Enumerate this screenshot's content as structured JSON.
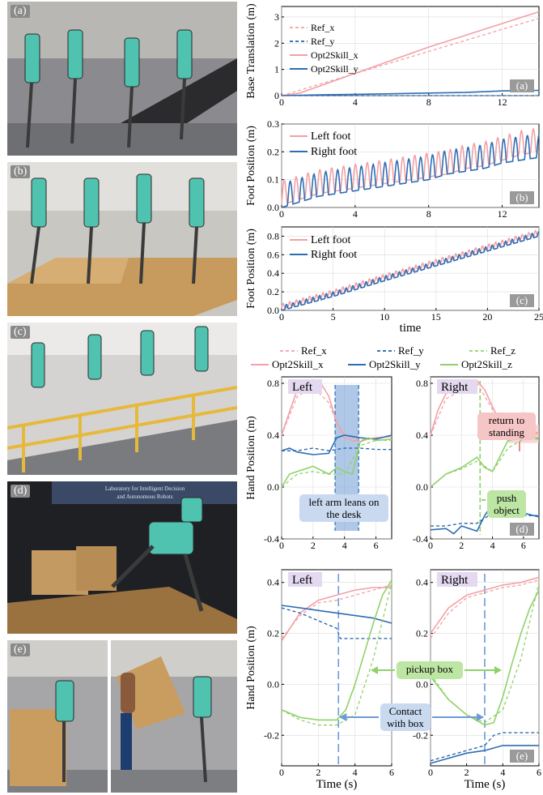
{
  "photos": [
    {
      "tag": "(a)"
    },
    {
      "tag": "(b)"
    },
    {
      "tag": "(c)"
    },
    {
      "tag": "(d)",
      "banner_line1": "Laboratory for Intelligent Decision",
      "banner_line2": "and Autonomous Robots"
    },
    {
      "tag": "(e)"
    }
  ],
  "colors": {
    "pink": "#f2a1a5",
    "blue": "#2e6db4",
    "green": "#8fd26a",
    "ref_blue": "#1f5fa8",
    "blue_box": "#6e9ad6",
    "purple_label": "#e4d9f1",
    "green_box": "#bde6a5",
    "pink_box": "#f6c5c5",
    "blue_note": "#c9d9f0"
  },
  "chart_data": [
    {
      "id": "a",
      "type": "line",
      "ylabel": "Base Translation (m)",
      "xlim": [
        0,
        14
      ],
      "ylim": [
        0,
        3.4
      ],
      "xticks": [
        0,
        4,
        8,
        12
      ],
      "yticks": [
        0,
        1,
        2,
        3
      ],
      "panel_label": "(a)",
      "legend": [
        "Ref_x",
        "Ref_y",
        "Opt2Skill_x",
        "Opt2Skill_y"
      ],
      "series": [
        {
          "name": "Ref_x",
          "x": [
            0,
            14
          ],
          "y": [
            0,
            2.95
          ]
        },
        {
          "name": "Ref_y",
          "x": [
            0,
            14
          ],
          "y": [
            0,
            0
          ]
        },
        {
          "name": "Opt2Skill_x",
          "x": [
            0,
            1,
            2,
            4,
            6,
            8,
            10,
            12,
            14
          ],
          "y": [
            0,
            0.1,
            0.35,
            0.85,
            1.35,
            1.85,
            2.3,
            2.75,
            3.2
          ]
        },
        {
          "name": "Opt2Skill_y",
          "x": [
            0,
            2,
            4,
            6,
            8,
            10,
            12,
            14
          ],
          "y": [
            0,
            0.03,
            0.05,
            0.07,
            0.1,
            0.12,
            0.18,
            0.2
          ]
        }
      ]
    },
    {
      "id": "b",
      "type": "line",
      "ylabel": "Foot Position (m)",
      "xlim": [
        0,
        14
      ],
      "ylim": [
        0,
        0.3
      ],
      "xticks": [
        0,
        4,
        8,
        12
      ],
      "yticks": [
        0.0,
        0.1,
        0.2,
        0.3
      ],
      "panel_label": "(b)",
      "legend": [
        "Left foot",
        "Right foot"
      ],
      "series": [
        {
          "name": "Left foot",
          "x": [
            0,
            1,
            2,
            3,
            4,
            5,
            6,
            7,
            8,
            9,
            10,
            11,
            12,
            13,
            14
          ],
          "y": [
            0.01,
            0.03,
            0.05,
            0.06,
            0.07,
            0.08,
            0.09,
            0.1,
            0.11,
            0.12,
            0.14,
            0.15,
            0.17,
            0.19,
            0.2
          ]
        },
        {
          "name": "Right foot",
          "x": [
            0,
            1,
            2,
            3,
            4,
            5,
            6,
            7,
            8,
            9,
            10,
            11,
            12,
            13,
            14
          ],
          "y": [
            0,
            0.02,
            0.04,
            0.05,
            0.06,
            0.07,
            0.08,
            0.09,
            0.1,
            0.12,
            0.13,
            0.14,
            0.16,
            0.17,
            0.18
          ]
        }
      ]
    },
    {
      "id": "c",
      "type": "line",
      "ylabel": "Foot Position (m)",
      "xlabel": "time",
      "xlim": [
        0,
        25
      ],
      "ylim": [
        0,
        0.9
      ],
      "xticks": [
        0,
        5,
        10,
        15,
        20,
        25
      ],
      "yticks": [
        0.0,
        0.2,
        0.4,
        0.6,
        0.8
      ],
      "panel_label": "(c)",
      "legend": [
        "Left foot",
        "Right foot"
      ],
      "series": [
        {
          "name": "Left foot",
          "x": [
            0,
            5,
            10,
            15,
            20,
            25
          ],
          "y": [
            0.02,
            0.17,
            0.34,
            0.5,
            0.66,
            0.82
          ]
        },
        {
          "name": "Right foot",
          "x": [
            0,
            5,
            10,
            15,
            20,
            25
          ],
          "y": [
            0.0,
            0.15,
            0.32,
            0.48,
            0.64,
            0.8
          ]
        }
      ]
    },
    {
      "id": "d",
      "type": "line",
      "ylabel": "Hand Position (m)",
      "legend": [
        "Ref_x",
        "Ref_y",
        "Ref_z",
        "Opt2Skill_x",
        "Opt2Skill_y",
        "Opt2Skill_z"
      ],
      "panel_label": "(d)",
      "subplots": [
        {
          "title": "Left",
          "xlim": [
            0,
            7
          ],
          "ylim": [
            -0.4,
            0.85
          ],
          "xticks": [
            0,
            2,
            4,
            6
          ],
          "yticks": [
            -0.4,
            0.0,
            0.4,
            0.8
          ],
          "annotation": [
            "left arm leans on",
            "the desk"
          ],
          "series": [
            {
              "name": "Opt2Skill_x",
              "x": [
                0,
                0.5,
                1,
                1.5,
                2,
                2.5,
                3,
                3.5,
                4,
                4.5,
                5,
                5.5,
                6,
                7
              ],
              "y": [
                0.4,
                0.58,
                0.75,
                0.8,
                0.82,
                0.8,
                0.7,
                0.5,
                0.38,
                0.36,
                0.35,
                0.37,
                0.38,
                0.39
              ]
            },
            {
              "name": "Ref_x",
              "x": [
                0,
                1,
                2,
                3,
                3.5,
                4,
                5,
                6,
                7
              ],
              "y": [
                0.4,
                0.7,
                0.77,
                0.65,
                0.5,
                0.4,
                0.36,
                0.38,
                0.39
              ]
            },
            {
              "name": "Opt2Skill_y",
              "x": [
                0,
                0.5,
                1,
                2,
                3,
                3.5,
                4,
                5,
                6,
                7
              ],
              "y": [
                0.28,
                0.3,
                0.27,
                0.25,
                0.26,
                0.38,
                0.4,
                0.38,
                0.37,
                0.4
              ]
            },
            {
              "name": "Ref_y",
              "x": [
                0,
                1,
                2,
                3,
                4,
                5,
                6,
                7
              ],
              "y": [
                0.28,
                0.28,
                0.3,
                0.28,
                0.3,
                0.3,
                0.29,
                0.29
              ]
            },
            {
              "name": "Opt2Skill_z",
              "x": [
                0,
                0.5,
                1,
                2,
                3,
                3.5,
                4,
                4.5,
                5,
                5.5,
                6,
                7
              ],
              "y": [
                0.0,
                0.1,
                0.12,
                0.16,
                0.1,
                0.15,
                0.12,
                0.1,
                0.35,
                0.38,
                0.36,
                0.37
              ]
            },
            {
              "name": "Ref_z",
              "x": [
                0,
                1,
                2,
                3,
                4,
                5,
                6,
                7
              ],
              "y": [
                0.0,
                0.1,
                0.12,
                0.1,
                0.1,
                0.32,
                0.36,
                0.36
              ]
            }
          ]
        },
        {
          "title": "Right",
          "xlim": [
            0,
            7
          ],
          "ylim": [
            -0.4,
            0.85
          ],
          "xticks": [
            0,
            2,
            4,
            6
          ],
          "yticks": [
            -0.4,
            0.0,
            0.4,
            0.8
          ],
          "annotations": [
            [
              "return to",
              "standing"
            ],
            [
              "push",
              "object"
            ]
          ],
          "series": [
            {
              "name": "Opt2Skill_x",
              "x": [
                0,
                0.5,
                1,
                2,
                3,
                3.5,
                4,
                4.5,
                5,
                5.5,
                6,
                7
              ],
              "y": [
                0.4,
                0.6,
                0.72,
                0.76,
                0.82,
                0.75,
                0.62,
                0.5,
                0.42,
                0.4,
                0.42,
                0.42
              ]
            },
            {
              "name": "Ref_x",
              "x": [
                0,
                1,
                2,
                3,
                4,
                5,
                6,
                7
              ],
              "y": [
                0.4,
                0.68,
                0.75,
                0.8,
                0.6,
                0.42,
                0.4,
                0.41
              ]
            },
            {
              "name": "Opt2Skill_z",
              "x": [
                0,
                0.5,
                1,
                2,
                3,
                3.5,
                4,
                5,
                6,
                7
              ],
              "y": [
                0.0,
                0.05,
                0.1,
                0.15,
                0.23,
                0.15,
                0.12,
                0.36,
                0.38,
                0.38
              ]
            },
            {
              "name": "Ref_z",
              "x": [
                0,
                1,
                2,
                3,
                4,
                5,
                6,
                7
              ],
              "y": [
                0.0,
                0.1,
                0.14,
                0.2,
                0.12,
                0.3,
                0.37,
                0.37
              ]
            },
            {
              "name": "Opt2Skill_y",
              "x": [
                0,
                1,
                1.5,
                2,
                3,
                3.5,
                4,
                5,
                6,
                7
              ],
              "y": [
                -0.33,
                -0.32,
                -0.36,
                -0.3,
                -0.34,
                -0.22,
                -0.13,
                -0.16,
                -0.2,
                -0.23
              ]
            },
            {
              "name": "Ref_y",
              "x": [
                0,
                1,
                2,
                3,
                4,
                5,
                6,
                7
              ],
              "y": [
                -0.3,
                -0.3,
                -0.28,
                -0.28,
                -0.2,
                -0.22,
                -0.22,
                -0.22
              ]
            }
          ]
        }
      ]
    },
    {
      "id": "e",
      "type": "line",
      "ylabel": "Hand Position (m)",
      "xlabel": "Time (s)",
      "panel_label": "(e)",
      "annotations": [
        "pickup box",
        [
          "Contact",
          "with box"
        ]
      ],
      "subplots": [
        {
          "title": "Left",
          "xlim": [
            0,
            6
          ],
          "ylim": [
            -0.32,
            0.45
          ],
          "xticks": [
            0,
            2,
            4,
            6
          ],
          "yticks": [
            -0.2,
            0.0,
            0.2,
            0.4
          ],
          "series": [
            {
              "name": "Opt2Skill_x",
              "x": [
                0,
                1,
                2,
                3,
                4,
                5,
                6
              ],
              "y": [
                0.17,
                0.28,
                0.33,
                0.35,
                0.37,
                0.38,
                0.38
              ]
            },
            {
              "name": "Ref_x",
              "x": [
                0,
                1,
                2,
                3,
                4,
                5,
                6
              ],
              "y": [
                0.18,
                0.27,
                0.32,
                0.33,
                0.35,
                0.37,
                0.39
              ]
            },
            {
              "name": "Opt2Skill_y",
              "x": [
                0,
                1,
                2,
                3,
                4,
                5,
                6
              ],
              "y": [
                0.31,
                0.3,
                0.29,
                0.28,
                0.27,
                0.26,
                0.24
              ]
            },
            {
              "name": "Ref_y",
              "x": [
                0,
                1,
                2,
                3,
                3.2,
                4,
                5,
                6
              ],
              "y": [
                0.3,
                0.28,
                0.25,
                0.22,
                0.18,
                0.18,
                0.18,
                0.18
              ]
            },
            {
              "name": "Opt2Skill_z",
              "x": [
                0,
                1,
                2,
                3,
                3.5,
                4,
                4.5,
                5,
                5.5,
                6
              ],
              "y": [
                -0.1,
                -0.13,
                -0.14,
                -0.14,
                -0.1,
                0.0,
                0.12,
                0.24,
                0.35,
                0.41
              ]
            },
            {
              "name": "Ref_z",
              "x": [
                0,
                1,
                2,
                3,
                4,
                5,
                6
              ],
              "y": [
                -0.1,
                -0.14,
                -0.16,
                -0.16,
                -0.12,
                0.1,
                0.4
              ]
            }
          ]
        },
        {
          "title": "Right",
          "xlim": [
            0,
            6
          ],
          "ylim": [
            -0.32,
            0.45
          ],
          "xticks": [
            0,
            2,
            4,
            6
          ],
          "yticks": [
            -0.2,
            0.0,
            0.2,
            0.4
          ],
          "series": [
            {
              "name": "Opt2Skill_x",
              "x": [
                0,
                1,
                2,
                3,
                4,
                5,
                6
              ],
              "y": [
                0.2,
                0.3,
                0.35,
                0.37,
                0.39,
                0.4,
                0.42
              ]
            },
            {
              "name": "Ref_x",
              "x": [
                0,
                1,
                2,
                3,
                4,
                5,
                6
              ],
              "y": [
                0.18,
                0.28,
                0.34,
                0.36,
                0.38,
                0.39,
                0.41
              ]
            },
            {
              "name": "Opt2Skill_z",
              "x": [
                0,
                1,
                2,
                3,
                3.5,
                4,
                4.5,
                5,
                5.5,
                6
              ],
              "y": [
                0.03,
                -0.06,
                -0.12,
                -0.16,
                -0.15,
                -0.05,
                0.08,
                0.2,
                0.3,
                0.37
              ]
            },
            {
              "name": "Ref_z",
              "x": [
                0,
                1,
                2,
                3,
                4,
                5,
                6
              ],
              "y": [
                0.04,
                -0.06,
                -0.12,
                -0.15,
                -0.1,
                0.1,
                0.4
              ]
            },
            {
              "name": "Opt2Skill_y",
              "x": [
                0,
                1,
                2,
                3,
                3.5,
                4,
                5,
                6
              ],
              "y": [
                -0.31,
                -0.29,
                -0.27,
                -0.26,
                -0.25,
                -0.24,
                -0.24,
                -0.24
              ]
            },
            {
              "name": "Ref_y",
              "x": [
                0,
                1,
                2,
                3,
                3.5,
                4,
                5,
                6
              ],
              "y": [
                -0.3,
                -0.28,
                -0.26,
                -0.24,
                -0.2,
                -0.19,
                -0.19,
                -0.19
              ]
            }
          ]
        }
      ]
    }
  ]
}
